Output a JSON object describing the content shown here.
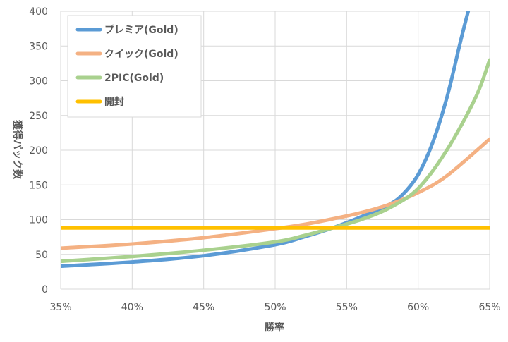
{
  "chart_data": {
    "type": "line",
    "xlabel": "勝率",
    "ylabel": "獲得パック数",
    "xlim": [
      0.35,
      0.65
    ],
    "ylim": [
      0,
      400
    ],
    "x_ticks": [
      0.35,
      0.4,
      0.45,
      0.5,
      0.55,
      0.6,
      0.65
    ],
    "x_tick_labels": [
      "35%",
      "40%",
      "45%",
      "50%",
      "55%",
      "60%",
      "65%"
    ],
    "y_ticks": [
      0,
      50,
      100,
      150,
      200,
      250,
      300,
      350,
      400
    ],
    "grid": true,
    "legend_position": "top-left",
    "series": [
      {
        "name": "プレミア(Gold)",
        "color": "#5b9bd5",
        "x": [
          0.35,
          0.4,
          0.45,
          0.5,
          0.52,
          0.54,
          0.56,
          0.58,
          0.59,
          0.6,
          0.61,
          0.62,
          0.63,
          0.635
        ],
        "values": [
          33,
          39,
          48,
          64,
          75,
          88,
          104,
          122,
          138,
          165,
          210,
          275,
          360,
          400
        ]
      },
      {
        "name": "クイック(Gold)",
        "color": "#f4b183",
        "x": [
          0.35,
          0.4,
          0.45,
          0.5,
          0.52,
          0.54,
          0.56,
          0.58,
          0.6,
          0.62,
          0.65
        ],
        "values": [
          59,
          65,
          74,
          87,
          93,
          101,
          110,
          122,
          139,
          163,
          216
        ]
      },
      {
        "name": "2PIC(Gold)",
        "color": "#a9d18e",
        "x": [
          0.35,
          0.4,
          0.45,
          0.5,
          0.52,
          0.54,
          0.56,
          0.58,
          0.6,
          0.62,
          0.64,
          0.65
        ],
        "values": [
          40,
          47,
          56,
          68,
          77,
          88,
          100,
          117,
          145,
          200,
          275,
          330
        ]
      },
      {
        "name": "開封",
        "color": "#ffc000",
        "x": [
          0.35,
          0.65
        ],
        "values": [
          88,
          88
        ]
      }
    ]
  }
}
